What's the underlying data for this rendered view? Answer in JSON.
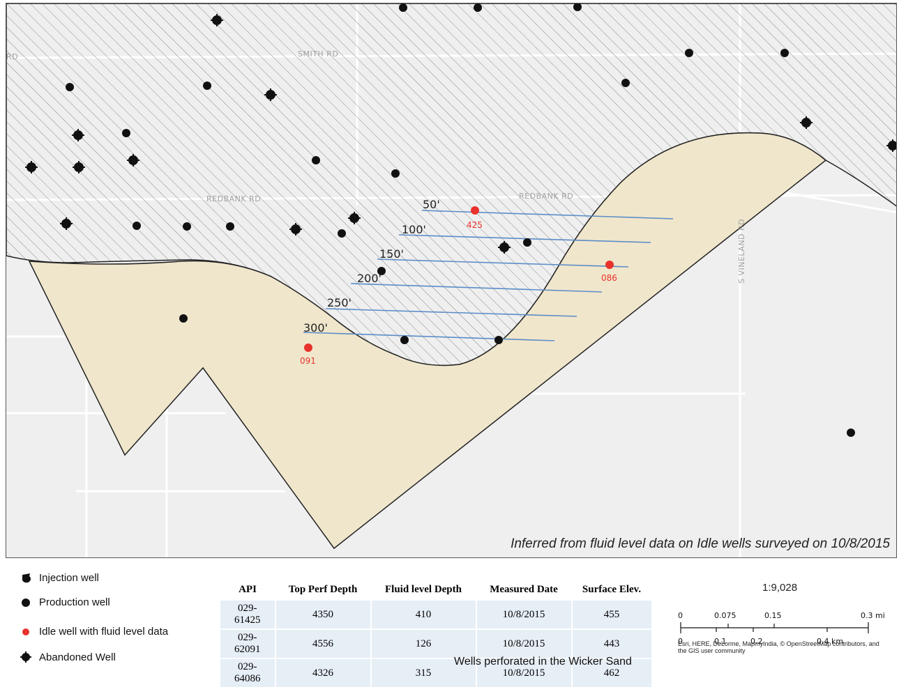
{
  "map": {
    "roads": {
      "smith": "SMITH RD",
      "rd_left": "RD",
      "redbank_1": "REDBANK RD",
      "redbank_2": "REDBANK RD",
      "vineland": "S VINELAND RD"
    },
    "contours": [
      "50'",
      "100'",
      "150'",
      "200'",
      "250'",
      "300'"
    ],
    "idle_wells": [
      "425",
      "086",
      "091"
    ],
    "note": "Inferred from fluid level data on Idle wells surveyed on 10/8/2015",
    "colors": {
      "zone_fill": "#f0e6cc",
      "hatch": "#8a8a8a",
      "contour": "#5b8cc7",
      "idle_well": "#e8322b"
    }
  },
  "legend": {
    "injection": "Injection well",
    "production": "Production well",
    "idle": "Idle well with fluid level data",
    "abandoned": "Abandoned Well"
  },
  "table": {
    "headers": [
      "API",
      "Top Perf Depth",
      "Fluid level Depth",
      "Measured Date",
      "Surface Elev."
    ],
    "rows": [
      [
        "029-61425",
        "4350",
        "410",
        "10/8/2015",
        "455"
      ],
      [
        "029-62091",
        "4556",
        "126",
        "10/8/2015",
        "443"
      ],
      [
        "029-64086",
        "4326",
        "315",
        "10/8/2015",
        "462"
      ]
    ],
    "caption": "Wells perforated in the Wicker Sand"
  },
  "scale": {
    "ratio": "1:9,028",
    "mi_ticks": [
      "0",
      "0.075",
      "0.15",
      "0.3 mi"
    ],
    "km_ticks": [
      "0",
      "0.1",
      "0.2",
      "0.4 km"
    ]
  },
  "attribution": "Esri, HERE, DeLorme, MapmyIndia, © OpenStreetMap contributors, and the GIS user community"
}
